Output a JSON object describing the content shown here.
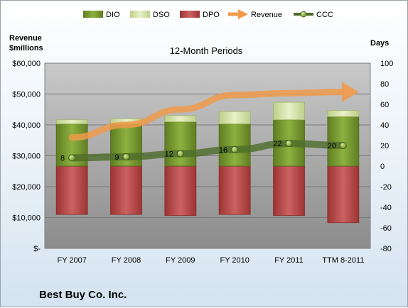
{
  "chart_data": {
    "type": "bar",
    "title": "12-Month Periods",
    "categories": [
      "FY 2007",
      "FY 2008",
      "FY 2009",
      "FY 2010",
      "FY 2011",
      "TTM 8-2011"
    ],
    "left_axis": {
      "label_line1": "Revenue",
      "label_line2": "$millions",
      "ylim": [
        0,
        60000
      ],
      "ticks": [
        {
          "value": 0,
          "label": "$-"
        },
        {
          "value": 10000,
          "label": "$10,000"
        },
        {
          "value": 20000,
          "label": "$20,000"
        },
        {
          "value": 30000,
          "label": "$30,000"
        },
        {
          "value": 40000,
          "label": "$40,000"
        },
        {
          "value": 50000,
          "label": "$50,000"
        },
        {
          "value": 60000,
          "label": "$60,000"
        }
      ]
    },
    "right_axis": {
      "label": "Days",
      "ylim": [
        -80,
        100
      ],
      "ticks": [
        "-80",
        "-60",
        "-40",
        "-20",
        "0",
        "20",
        "40",
        "60",
        "80",
        "100"
      ]
    },
    "series": [
      {
        "name": "DIO",
        "axis": "right",
        "color": "#7a9a2e",
        "values": [
          41,
          41,
          43,
          41,
          45,
          48
        ]
      },
      {
        "name": "DSO",
        "axis": "right",
        "color": "#d4e0a4",
        "values": [
          4,
          5,
          6,
          12,
          17,
          6
        ]
      },
      {
        "name": "DPO",
        "axis": "right",
        "color": "#b84a4a",
        "values": [
          -47,
          -47,
          -48,
          -47,
          -48,
          -55
        ]
      },
      {
        "name": "Revenue",
        "axis": "left",
        "color": "#f09a4a",
        "values": [
          35934,
          40023,
          45015,
          49694,
          50272,
          50680
        ]
      },
      {
        "name": "CCC",
        "axis": "right",
        "color": "#4e6b2a",
        "values": [
          8,
          9,
          12,
          16,
          22,
          20
        ]
      }
    ],
    "data_labels": [
      "8",
      "9",
      "12",
      "16",
      "22",
      "20"
    ],
    "legend_position": "top",
    "grid": true
  },
  "footer": {
    "company": "Best Buy Co. Inc."
  }
}
